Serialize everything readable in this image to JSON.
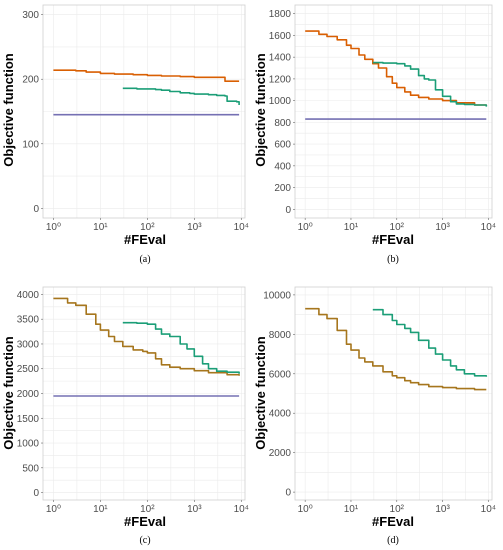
{
  "chart_data": [
    {
      "type": "line",
      "caption": "(a)",
      "xlabel": "#FEval",
      "ylabel": "Objective function",
      "xscale": "log10",
      "xlim": [
        0.6,
        12000
      ],
      "ylim": [
        -15,
        315
      ],
      "yticks": [
        0,
        100,
        200,
        300
      ],
      "xticks": [
        1,
        10,
        100,
        1000,
        10000
      ],
      "xtick_labels": [
        "10⁰",
        "10¹",
        "10²",
        "10³",
        "10⁴"
      ],
      "grid": true,
      "series": [
        {
          "color": "#d95f02",
          "x": [
            1,
            3,
            5,
            10,
            20,
            50,
            100,
            200,
            500,
            1000,
            2000,
            3000,
            4000,
            4500,
            6000,
            9000
          ],
          "y": [
            214,
            213,
            211,
            209,
            208,
            207,
            206,
            205,
            204,
            203,
            203,
            203,
            203,
            197,
            197,
            197
          ]
        },
        {
          "color": "#1b9e77",
          "x": [
            30,
            60,
            100,
            150,
            200,
            300,
            500,
            800,
            1000,
            2000,
            3000,
            4500,
            5000,
            8000,
            9000
          ],
          "y": [
            186,
            185,
            185,
            184,
            183,
            181,
            179,
            178,
            177,
            176,
            175,
            174,
            166,
            165,
            160
          ]
        },
        {
          "color": "#7570b3",
          "x": [
            1,
            9000
          ],
          "y": [
            145,
            145
          ]
        }
      ]
    },
    {
      "type": "line",
      "caption": "(b)",
      "xlabel": "#FEval",
      "ylabel": "Objective function",
      "xscale": "log10",
      "xlim": [
        0.6,
        12000
      ],
      "ylim": [
        -80,
        1880
      ],
      "yticks": [
        0,
        200,
        400,
        600,
        800,
        1000,
        1200,
        1400,
        1600,
        1800
      ],
      "xticks": [
        1,
        10,
        100,
        1000,
        10000
      ],
      "xtick_labels": [
        "10⁰",
        "10¹",
        "10²",
        "10³",
        "10⁴"
      ],
      "grid": true,
      "series": [
        {
          "color": "#d95f02",
          "x": [
            1,
            2,
            3,
            5,
            8,
            10,
            15,
            20,
            30,
            40,
            60,
            80,
            100,
            150,
            200,
            300,
            500,
            1000,
            2000,
            5000,
            9000
          ],
          "y": [
            1640,
            1610,
            1590,
            1560,
            1510,
            1480,
            1420,
            1380,
            1340,
            1300,
            1220,
            1160,
            1120,
            1080,
            1050,
            1030,
            1015,
            1000,
            980,
            960,
            950
          ]
        },
        {
          "color": "#1b9e77",
          "x": [
            30,
            50,
            100,
            150,
            200,
            300,
            400,
            500,
            700,
            1000,
            1500,
            2000,
            3000,
            5000,
            9000
          ],
          "y": [
            1350,
            1345,
            1340,
            1320,
            1290,
            1230,
            1200,
            1190,
            1100,
            1040,
            990,
            970,
            965,
            960,
            945
          ]
        },
        {
          "color": "#7570b3",
          "x": [
            1,
            9000
          ],
          "y": [
            830,
            830
          ]
        }
      ]
    },
    {
      "type": "line",
      "caption": "(c)",
      "xlabel": "#FEval",
      "ylabel": "Objective function",
      "xscale": "log10",
      "xlim": [
        0.6,
        12000
      ],
      "ylim": [
        -150,
        4150
      ],
      "yticks": [
        0,
        500,
        1000,
        1500,
        2000,
        2500,
        3000,
        3500,
        4000
      ],
      "xticks": [
        1,
        10,
        100,
        1000,
        10000
      ],
      "xtick_labels": [
        "10⁰",
        "10¹",
        "10²",
        "10³",
        "10⁴"
      ],
      "grid": true,
      "series": [
        {
          "color": "#a6761d",
          "x": [
            1,
            2,
            3,
            5,
            8,
            10,
            15,
            20,
            30,
            50,
            80,
            100,
            150,
            200,
            300,
            500,
            1000,
            2000,
            5000,
            9000
          ],
          "y": [
            3920,
            3830,
            3780,
            3600,
            3400,
            3280,
            3150,
            3050,
            2950,
            2880,
            2850,
            2820,
            2700,
            2580,
            2530,
            2500,
            2460,
            2420,
            2380,
            2360
          ]
        },
        {
          "color": "#1b9e77",
          "x": [
            30,
            60,
            100,
            150,
            200,
            300,
            500,
            700,
            1000,
            1500,
            2000,
            3000,
            5000,
            9000
          ],
          "y": [
            3430,
            3420,
            3400,
            3300,
            3200,
            3150,
            3000,
            2900,
            2750,
            2600,
            2500,
            2450,
            2430,
            2400
          ]
        },
        {
          "color": "#7570b3",
          "x": [
            1,
            9000
          ],
          "y": [
            1950,
            1950
          ]
        }
      ]
    },
    {
      "type": "line",
      "caption": "(d)",
      "xlabel": "#FEval",
      "ylabel": "Objective function",
      "xscale": "log10",
      "xlim": [
        0.6,
        12000
      ],
      "ylim": [
        -400,
        10400
      ],
      "yticks": [
        0,
        2000,
        4000,
        6000,
        8000,
        10000
      ],
      "xticks": [
        1,
        10,
        100,
        1000,
        10000
      ],
      "xtick_labels": [
        "10⁰",
        "10¹",
        "10²",
        "10³",
        "10⁴"
      ],
      "grid": true,
      "series": [
        {
          "color": "#a6761d",
          "x": [
            1,
            2,
            3,
            5,
            8,
            10,
            15,
            20,
            30,
            50,
            80,
            100,
            150,
            200,
            300,
            500,
            1000,
            2000,
            5000,
            9000
          ],
          "y": [
            9300,
            9000,
            8800,
            8200,
            7500,
            7200,
            6800,
            6600,
            6400,
            6100,
            5900,
            5800,
            5650,
            5550,
            5450,
            5350,
            5300,
            5250,
            5200,
            5200
          ]
        },
        {
          "color": "#1b9e77",
          "x": [
            30,
            50,
            80,
            100,
            150,
            200,
            300,
            500,
            700,
            1000,
            1500,
            2000,
            3000,
            5000,
            9000
          ],
          "y": [
            9250,
            9000,
            8700,
            8500,
            8300,
            8100,
            7700,
            7300,
            7000,
            6700,
            6400,
            6200,
            6000,
            5900,
            5850
          ]
        }
      ]
    }
  ]
}
